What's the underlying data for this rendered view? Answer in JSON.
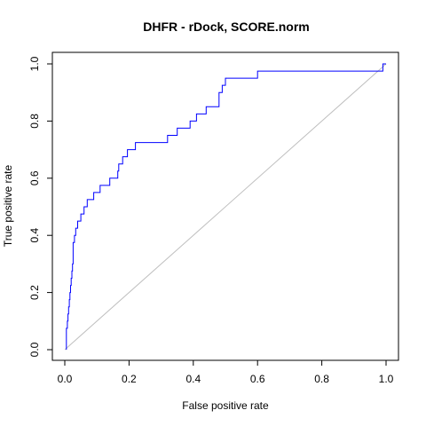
{
  "chart_data": {
    "type": "line",
    "title": "DHFR - rDock, SCORE.norm",
    "xlabel": "False positive rate",
    "ylabel": "True positive rate",
    "xlim": [
      0,
      1
    ],
    "ylim": [
      0,
      1
    ],
    "xticks": [
      "0.0",
      "0.2",
      "0.4",
      "0.6",
      "0.8",
      "1.0"
    ],
    "yticks": [
      "0.0",
      "0.2",
      "0.4",
      "0.6",
      "0.8",
      "1.0"
    ],
    "grid": false,
    "legend": "none",
    "series": [
      {
        "color": "#0000ff",
        "x": [
          0.005,
          0.005,
          0.008,
          0.008,
          0.01,
          0.01,
          0.012,
          0.012,
          0.014,
          0.014,
          0.016,
          0.016,
          0.018,
          0.018,
          0.02,
          0.02,
          0.022,
          0.022,
          0.024,
          0.024,
          0.026,
          0.026,
          0.03,
          0.03,
          0.034,
          0.034,
          0.04,
          0.04,
          0.05,
          0.05,
          0.06,
          0.06,
          0.07,
          0.07,
          0.08,
          0.08,
          0.09,
          0.09,
          0.11,
          0.11,
          0.14,
          0.14,
          0.165,
          0.165,
          0.168,
          0.168,
          0.172,
          0.172,
          0.18,
          0.18,
          0.195,
          0.195,
          0.22,
          0.22,
          0.32,
          0.32,
          0.35,
          0.35,
          0.39,
          0.39,
          0.41,
          0.41,
          0.44,
          0.44,
          0.48,
          0.48,
          0.49,
          0.49,
          0.5,
          0.5,
          0.6,
          0.6,
          0.73,
          0.73,
          0.99,
          0.99,
          1.0
        ],
        "y": [
          0.0,
          0.075,
          0.075,
          0.1,
          0.1,
          0.125,
          0.125,
          0.15,
          0.15,
          0.175,
          0.175,
          0.2,
          0.2,
          0.225,
          0.225,
          0.25,
          0.25,
          0.275,
          0.275,
          0.3,
          0.3,
          0.375,
          0.375,
          0.4,
          0.4,
          0.425,
          0.425,
          0.45,
          0.45,
          0.475,
          0.475,
          0.5,
          0.5,
          0.525,
          0.525,
          0.525,
          0.525,
          0.55,
          0.55,
          0.575,
          0.575,
          0.6,
          0.6,
          0.625,
          0.625,
          0.65,
          0.65,
          0.65,
          0.65,
          0.675,
          0.675,
          0.7,
          0.7,
          0.725,
          0.725,
          0.75,
          0.75,
          0.775,
          0.775,
          0.8,
          0.8,
          0.825,
          0.825,
          0.85,
          0.85,
          0.9,
          0.9,
          0.925,
          0.925,
          0.95,
          0.95,
          0.975,
          0.975,
          0.975,
          0.975,
          1.0,
          1.0
        ]
      }
    ],
    "reference_line": {
      "x": [
        0,
        1
      ],
      "y": [
        0,
        1
      ],
      "color": "#bebebe"
    }
  }
}
